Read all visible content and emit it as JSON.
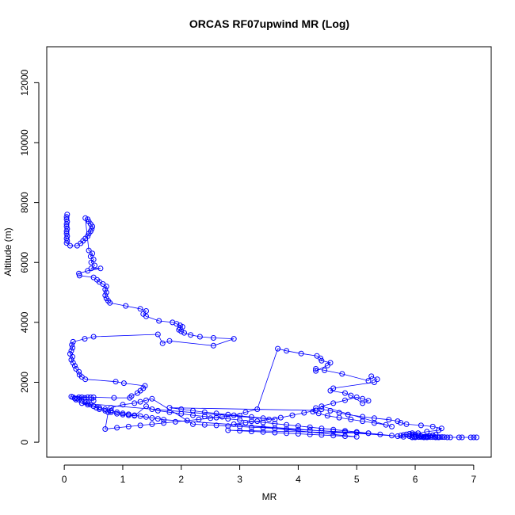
{
  "chart_data": {
    "type": "scatter",
    "title": "ORCAS RF07upwind MR (Log)",
    "xlabel": "MR",
    "ylabel": "Altitude (m)",
    "xlim": [
      -0.3,
      7.3
    ],
    "ylim": [
      -500,
      13200
    ],
    "xticks": [
      "0",
      "1",
      "2",
      "3",
      "4",
      "5",
      "6",
      "7"
    ],
    "yticks": [
      "0",
      "2000",
      "4000",
      "6000",
      "8000",
      "10000",
      "12000"
    ],
    "grid": false,
    "legend": "none",
    "colors": {
      "series": "#0000ff",
      "axes": "#000000"
    },
    "series": [
      {
        "points": [
          [
            0.05,
            7600
          ],
          [
            0.04,
            7520
          ],
          [
            0.04,
            7440
          ],
          [
            0.05,
            7360
          ],
          [
            0.04,
            7280
          ],
          [
            0.04,
            7200
          ],
          [
            0.05,
            7120
          ],
          [
            0.04,
            7040
          ],
          [
            0.04,
            6960
          ],
          [
            0.05,
            6880
          ],
          [
            0.04,
            6800
          ],
          [
            0.05,
            6720
          ],
          [
            0.04,
            6650
          ],
          [
            0.1,
            6560
          ],
          [
            0.22,
            6560
          ],
          [
            0.28,
            6640
          ],
          [
            0.32,
            6720
          ],
          [
            0.36,
            6800
          ],
          [
            0.4,
            6880
          ],
          [
            0.42,
            6960
          ],
          [
            0.45,
            7040
          ],
          [
            0.47,
            7120
          ],
          [
            0.48,
            7200
          ],
          [
            0.45,
            7280
          ],
          [
            0.42,
            7360
          ],
          [
            0.4,
            7440
          ],
          [
            0.36,
            7480
          ],
          [
            0.42,
            6400
          ],
          [
            0.48,
            6300
          ],
          [
            0.45,
            6200
          ],
          [
            0.5,
            6100
          ],
          [
            0.46,
            6000
          ],
          [
            0.52,
            5900
          ],
          [
            0.46,
            5800
          ],
          [
            0.62,
            5800
          ],
          [
            0.4,
            5720
          ],
          [
            0.25,
            5630
          ],
          [
            0.26,
            5560
          ],
          [
            0.5,
            5500
          ],
          [
            0.56,
            5420
          ],
          [
            0.6,
            5350
          ],
          [
            0.66,
            5280
          ],
          [
            0.72,
            5200
          ],
          [
            0.7,
            5100
          ],
          [
            0.72,
            5000
          ],
          [
            0.7,
            4900
          ],
          [
            0.72,
            4800
          ],
          [
            0.75,
            4720
          ],
          [
            0.78,
            4650
          ],
          [
            1.05,
            4550
          ],
          [
            1.3,
            4450
          ],
          [
            1.4,
            4380
          ],
          [
            1.35,
            4280
          ],
          [
            1.4,
            4200
          ],
          [
            1.62,
            4050
          ],
          [
            1.85,
            4000
          ],
          [
            1.92,
            3950
          ],
          [
            1.98,
            3900
          ],
          [
            2.02,
            3850
          ],
          [
            1.98,
            3800
          ],
          [
            1.96,
            3750
          ],
          [
            2.0,
            3700
          ],
          [
            2.05,
            3650
          ],
          [
            2.16,
            3580
          ],
          [
            2.32,
            3520
          ],
          [
            2.55,
            3480
          ],
          [
            2.9,
            3450
          ],
          [
            2.55,
            3220
          ],
          [
            1.8,
            3380
          ],
          [
            1.68,
            3300
          ],
          [
            1.6,
            3600
          ],
          [
            0.5,
            3520
          ],
          [
            0.35,
            3450
          ],
          [
            0.15,
            3350
          ],
          [
            0.13,
            3250
          ],
          [
            0.14,
            3150
          ],
          [
            0.12,
            3050
          ],
          [
            0.1,
            2950
          ],
          [
            0.14,
            2850
          ],
          [
            0.12,
            2750
          ],
          [
            0.15,
            2650
          ],
          [
            0.18,
            2550
          ],
          [
            0.2,
            2450
          ],
          [
            0.25,
            2350
          ],
          [
            0.26,
            2250
          ],
          [
            0.3,
            2180
          ],
          [
            0.36,
            2100
          ],
          [
            0.88,
            2020
          ],
          [
            1.02,
            1970
          ],
          [
            1.38,
            1880
          ],
          [
            1.35,
            1800
          ],
          [
            1.3,
            1720
          ],
          [
            1.25,
            1640
          ],
          [
            1.15,
            1540
          ],
          [
            1.12,
            1480
          ],
          [
            0.85,
            1480
          ],
          [
            0.12,
            1520
          ],
          [
            0.15,
            1500
          ],
          [
            0.18,
            1460
          ],
          [
            0.2,
            1420
          ],
          [
            0.25,
            1500
          ],
          [
            0.3,
            1500
          ],
          [
            0.35,
            1480
          ],
          [
            0.4,
            1500
          ],
          [
            0.45,
            1500
          ],
          [
            0.5,
            1500
          ],
          [
            0.5,
            1380
          ],
          [
            0.22,
            1460
          ],
          [
            0.25,
            1420
          ],
          [
            0.3,
            1380
          ],
          [
            0.35,
            1330
          ],
          [
            0.4,
            1300
          ],
          [
            0.45,
            1250
          ],
          [
            0.5,
            1200
          ],
          [
            0.55,
            1150
          ],
          [
            0.6,
            1100
          ],
          [
            0.7,
            1050
          ],
          [
            0.8,
            1000
          ],
          [
            0.9,
            950
          ],
          [
            1.0,
            920
          ],
          [
            1.1,
            900
          ],
          [
            1.2,
            880
          ],
          [
            1.4,
            1200
          ],
          [
            1.5,
            1100
          ],
          [
            1.6,
            1050
          ],
          [
            1.8,
            1000
          ],
          [
            2.0,
            950
          ],
          [
            2.2,
            900
          ],
          [
            2.4,
            860
          ],
          [
            2.6,
            820
          ],
          [
            2.8,
            780
          ],
          [
            3.0,
            740
          ],
          [
            3.2,
            700
          ],
          [
            3.4,
            660
          ],
          [
            3.6,
            620
          ],
          [
            3.8,
            580
          ],
          [
            4.0,
            540
          ],
          [
            4.2,
            500
          ],
          [
            4.4,
            460
          ],
          [
            4.6,
            420
          ],
          [
            4.8,
            380
          ],
          [
            5.0,
            340
          ],
          [
            5.2,
            300
          ],
          [
            5.4,
            260
          ],
          [
            5.6,
            220
          ],
          [
            5.8,
            180
          ],
          [
            6.0,
            160
          ],
          [
            6.2,
            160
          ],
          [
            6.4,
            160
          ],
          [
            6.6,
            160
          ],
          [
            6.8,
            160
          ],
          [
            7.0,
            160
          ],
          [
            7.05,
            160
          ],
          [
            6.95,
            160
          ],
          [
            6.75,
            160
          ],
          [
            6.55,
            160
          ],
          [
            6.35,
            160
          ],
          [
            6.15,
            160
          ],
          [
            5.95,
            160
          ],
          [
            5.9,
            200
          ],
          [
            5.95,
            250
          ],
          [
            6.05,
            300
          ],
          [
            6.2,
            350
          ],
          [
            6.4,
            400
          ],
          [
            6.45,
            460
          ],
          [
            6.3,
            520
          ],
          [
            6.1,
            560
          ],
          [
            5.85,
            600
          ],
          [
            5.75,
            650
          ],
          [
            5.7,
            700
          ],
          [
            5.55,
            750
          ],
          [
            5.3,
            800
          ],
          [
            5.1,
            850
          ],
          [
            4.85,
            920
          ],
          [
            4.7,
            980
          ],
          [
            4.55,
            1050
          ],
          [
            4.4,
            1100
          ],
          [
            4.3,
            1140
          ],
          [
            4.25,
            1020
          ],
          [
            4.35,
            960
          ],
          [
            4.5,
            880
          ],
          [
            4.7,
            820
          ],
          [
            4.9,
            760
          ],
          [
            5.1,
            700
          ],
          [
            5.3,
            640
          ],
          [
            5.5,
            580
          ],
          [
            5.6,
            520
          ],
          [
            4.4,
            1200
          ],
          [
            4.6,
            1300
          ],
          [
            4.8,
            1400
          ],
          [
            5.0,
            1500
          ],
          [
            5.1,
            1450
          ],
          [
            5.2,
            1380
          ],
          [
            5.1,
            1300
          ],
          [
            4.9,
            1560
          ],
          [
            4.8,
            1640
          ],
          [
            4.55,
            1720
          ],
          [
            4.6,
            1800
          ],
          [
            5.3,
            2000
          ],
          [
            5.35,
            2100
          ],
          [
            5.25,
            2200
          ],
          [
            5.2,
            2050
          ],
          [
            4.75,
            2280
          ],
          [
            4.45,
            2400
          ],
          [
            4.3,
            2450
          ],
          [
            4.3,
            2380
          ],
          [
            4.5,
            2560
          ],
          [
            4.55,
            2650
          ],
          [
            4.4,
            2720
          ],
          [
            4.38,
            2800
          ],
          [
            4.32,
            2880
          ],
          [
            4.05,
            2960
          ],
          [
            3.8,
            3050
          ],
          [
            3.65,
            3120
          ],
          [
            3.3,
            1100
          ],
          [
            3.1,
            1000
          ],
          [
            2.9,
            900
          ],
          [
            2.7,
            850
          ],
          [
            2.5,
            800
          ],
          [
            2.3,
            760
          ],
          [
            2.1,
            720
          ],
          [
            1.9,
            680
          ],
          [
            1.7,
            640
          ],
          [
            1.5,
            600
          ],
          [
            1.3,
            560
          ],
          [
            1.1,
            520
          ],
          [
            0.9,
            480
          ],
          [
            0.7,
            440
          ],
          [
            0.75,
            1000
          ],
          [
            0.8,
            1150
          ],
          [
            1.0,
            1250
          ],
          [
            1.2,
            1300
          ],
          [
            1.3,
            1350
          ],
          [
            1.4,
            1400
          ],
          [
            1.5,
            1450
          ],
          [
            2.2,
            600
          ],
          [
            2.4,
            580
          ],
          [
            2.6,
            560
          ],
          [
            2.8,
            540
          ],
          [
            3.0,
            520
          ],
          [
            3.2,
            500
          ],
          [
            3.4,
            480
          ],
          [
            3.6,
            460
          ],
          [
            3.8,
            440
          ],
          [
            4.0,
            420
          ],
          [
            4.2,
            400
          ],
          [
            4.4,
            380
          ],
          [
            4.6,
            360
          ],
          [
            4.8,
            340
          ],
          [
            5.0,
            320
          ],
          [
            5.2,
            300
          ],
          [
            2.8,
            400
          ],
          [
            3.0,
            380
          ],
          [
            3.2,
            360
          ],
          [
            3.4,
            340
          ],
          [
            3.6,
            320
          ],
          [
            3.8,
            300
          ],
          [
            4.0,
            280
          ],
          [
            4.2,
            260
          ],
          [
            4.4,
            240
          ],
          [
            4.6,
            220
          ],
          [
            4.8,
            200
          ],
          [
            5.0,
            180
          ],
          [
            2.9,
            600
          ],
          [
            3.1,
            650
          ],
          [
            3.3,
            700
          ],
          [
            3.5,
            760
          ],
          [
            3.7,
            820
          ],
          [
            3.9,
            900
          ],
          [
            4.1,
            980
          ],
          [
            4.3,
            1060
          ],
          [
            1.8,
            1150
          ],
          [
            2.0,
            1100
          ],
          [
            2.2,
            1050
          ],
          [
            2.4,
            1000
          ],
          [
            2.6,
            960
          ],
          [
            2.8,
            920
          ],
          [
            3.0,
            880
          ],
          [
            3.2,
            840
          ],
          [
            3.4,
            800
          ],
          [
            3.6,
            760
          ],
          [
            0.3,
            1300
          ],
          [
            0.4,
            1250
          ],
          [
            0.5,
            1200
          ],
          [
            0.6,
            1150
          ],
          [
            0.7,
            1100
          ],
          [
            0.8,
            1050
          ],
          [
            0.9,
            1000
          ],
          [
            1.0,
            960
          ],
          [
            1.1,
            930
          ],
          [
            1.2,
            900
          ],
          [
            1.3,
            870
          ],
          [
            1.4,
            840
          ],
          [
            1.5,
            810
          ],
          [
            1.6,
            780
          ],
          [
            1.7,
            750
          ],
          [
            5.7,
            200
          ],
          [
            5.75,
            220
          ],
          [
            5.8,
            240
          ],
          [
            5.85,
            260
          ],
          [
            5.9,
            280
          ],
          [
            5.95,
            300
          ],
          [
            6.0,
            260
          ],
          [
            6.05,
            230
          ],
          [
            6.1,
            200
          ],
          [
            6.15,
            180
          ],
          [
            6.2,
            190
          ],
          [
            6.25,
            210
          ],
          [
            6.3,
            230
          ],
          [
            6.35,
            250
          ],
          [
            5.95,
            170
          ],
          [
            5.98,
            175
          ],
          [
            6.02,
            180
          ],
          [
            6.06,
            172
          ],
          [
            6.1,
            168
          ],
          [
            6.14,
            170
          ],
          [
            6.18,
            175
          ],
          [
            6.22,
            172
          ],
          [
            6.26,
            168
          ],
          [
            6.3,
            170
          ],
          [
            6.34,
            172
          ],
          [
            6.38,
            168
          ],
          [
            6.42,
            170
          ],
          [
            6.46,
            172
          ],
          [
            6.5,
            168
          ]
        ]
      }
    ]
  }
}
